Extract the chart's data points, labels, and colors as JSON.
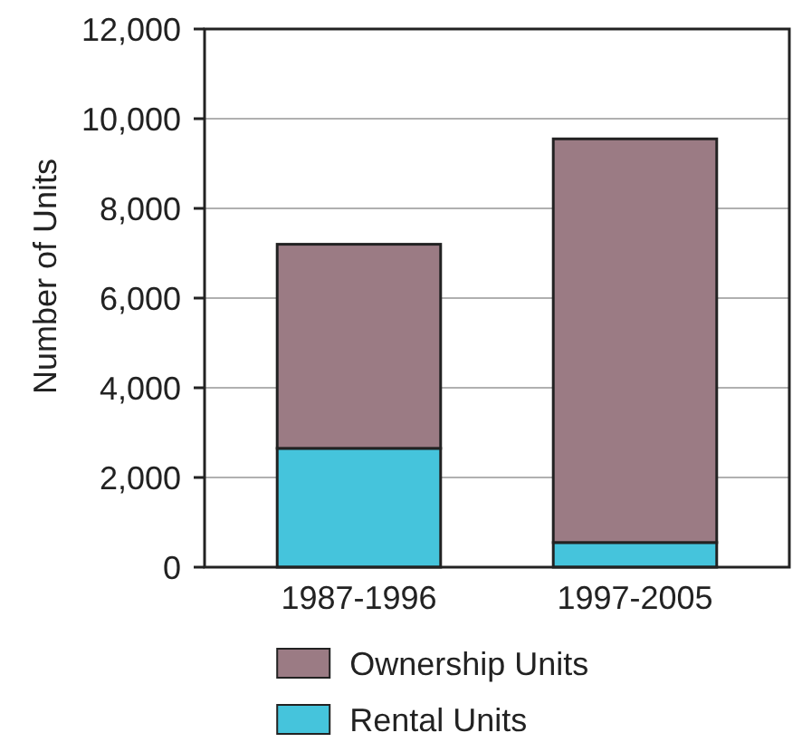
{
  "chart_data": {
    "type": "bar",
    "stacked": true,
    "ylabel": "Number of Units",
    "categories": [
      "1987-1996",
      "1997-2005"
    ],
    "series": [
      {
        "name": "Rental Units",
        "color": "#45c4dc",
        "values": [
          2650,
          550
        ]
      },
      {
        "name": "Ownership Units",
        "color": "#9b7b84",
        "values": [
          4550,
          9000
        ]
      }
    ],
    "ylim": [
      0,
      12000
    ],
    "yticks": [
      0,
      {
        "value": 2000,
        "label": "2,000"
      },
      {
        "value": 4000,
        "label": "4,000"
      },
      {
        "value": 6000,
        "label": "6,000"
      },
      {
        "value": 8000,
        "label": "8,000"
      },
      {
        "value": 10000,
        "label": "10,000"
      },
      {
        "value": 12000,
        "label": "12,000"
      }
    ],
    "grid": "y",
    "legend": "bottom"
  }
}
